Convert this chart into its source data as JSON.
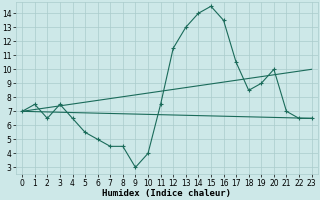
{
  "xlabel": "Humidex (Indice chaleur)",
  "xlim": [
    -0.5,
    23.5
  ],
  "ylim": [
    2.5,
    14.8
  ],
  "yticks": [
    3,
    4,
    5,
    6,
    7,
    8,
    9,
    10,
    11,
    12,
    13,
    14
  ],
  "xticks": [
    0,
    1,
    2,
    3,
    4,
    5,
    6,
    7,
    8,
    9,
    10,
    11,
    12,
    13,
    14,
    15,
    16,
    17,
    18,
    19,
    20,
    21,
    22,
    23
  ],
  "bg_color": "#cde8e8",
  "grid_color": "#aacccc",
  "line_color": "#1a6b5a",
  "line1_x": [
    0,
    1,
    2,
    3,
    4,
    5,
    6,
    7,
    8,
    9,
    10,
    11,
    12,
    13,
    14,
    15,
    16,
    17,
    18,
    19,
    20,
    21,
    22,
    23
  ],
  "line1_y": [
    7.0,
    7.5,
    6.5,
    7.5,
    6.5,
    5.5,
    5.0,
    4.5,
    4.5,
    3.0,
    4.0,
    7.5,
    11.5,
    13.0,
    14.0,
    14.5,
    13.5,
    10.5,
    8.5,
    9.0,
    10.0,
    7.0,
    6.5,
    6.5
  ],
  "line2_x": [
    0,
    23
  ],
  "line2_y": [
    7.0,
    6.5
  ],
  "line3_x": [
    0,
    23
  ],
  "line3_y": [
    7.0,
    10.0
  ],
  "tick_fontsize": 5.5,
  "xlabel_fontsize": 6.5
}
